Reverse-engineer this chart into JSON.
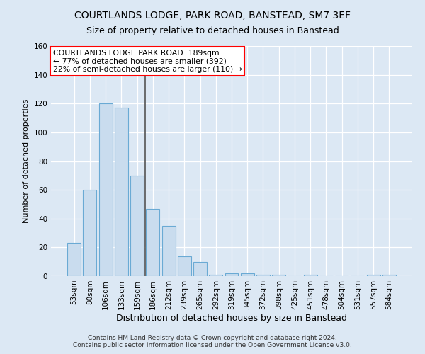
{
  "title_line1": "COURTLANDS LODGE, PARK ROAD, BANSTEAD, SM7 3EF",
  "title_line2": "Size of property relative to detached houses in Banstead",
  "xlabel": "Distribution of detached houses by size in Banstead",
  "ylabel": "Number of detached properties",
  "categories": [
    "53sqm",
    "80sqm",
    "106sqm",
    "133sqm",
    "159sqm",
    "186sqm",
    "212sqm",
    "239sqm",
    "265sqm",
    "292sqm",
    "319sqm",
    "345sqm",
    "372sqm",
    "398sqm",
    "425sqm",
    "451sqm",
    "478sqm",
    "504sqm",
    "531sqm",
    "557sqm",
    "584sqm"
  ],
  "values": [
    23,
    60,
    120,
    117,
    70,
    47,
    35,
    14,
    10,
    1,
    2,
    2,
    1,
    1,
    0,
    1,
    0,
    0,
    0,
    1,
    1
  ],
  "bar_color": "#c9dcee",
  "bar_edge_color": "#6aaad4",
  "ylim": [
    0,
    160
  ],
  "yticks": [
    0,
    20,
    40,
    60,
    80,
    100,
    120,
    140,
    160
  ],
  "annotation_line1": "COURTLANDS LODGE PARK ROAD: 189sqm",
  "annotation_line2": "← 77% of detached houses are smaller (392)",
  "annotation_line3": "22% of semi-detached houses are larger (110) →",
  "background_color": "#dce8f4",
  "footer_line1": "Contains HM Land Registry data © Crown copyright and database right 2024.",
  "footer_line2": "Contains public sector information licensed under the Open Government Licence v3.0.",
  "vline_index": 4.5,
  "title1_fontsize": 10,
  "title2_fontsize": 9,
  "ylabel_fontsize": 8,
  "xlabel_fontsize": 9,
  "tick_fontsize": 7.5,
  "annot_fontsize": 7.8
}
